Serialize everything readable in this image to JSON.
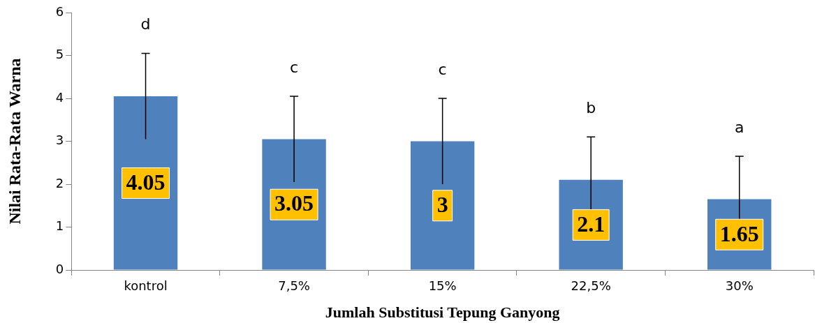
{
  "chart_data": {
    "type": "bar",
    "xlabel": "Jumlah Substitusi Tepung Ganyong",
    "ylabel": "Nilai Rata-Rata Warna",
    "categories": [
      "kontrol",
      "7,5%",
      "15%",
      "22,5%",
      "30%"
    ],
    "values": [
      4.05,
      3.05,
      3,
      2.1,
      1.65
    ],
    "errors": [
      1,
      1,
      1,
      1,
      1
    ],
    "color": "#4f81bd",
    "data_labels": true,
    "ylim": [
      0,
      6
    ],
    "yticks": [
      0,
      1,
      2,
      3,
      4,
      5,
      6
    ],
    "grid": false,
    "legend": false,
    "annotations": [
      "d",
      "c",
      "c",
      "b",
      "a"
    ]
  }
}
